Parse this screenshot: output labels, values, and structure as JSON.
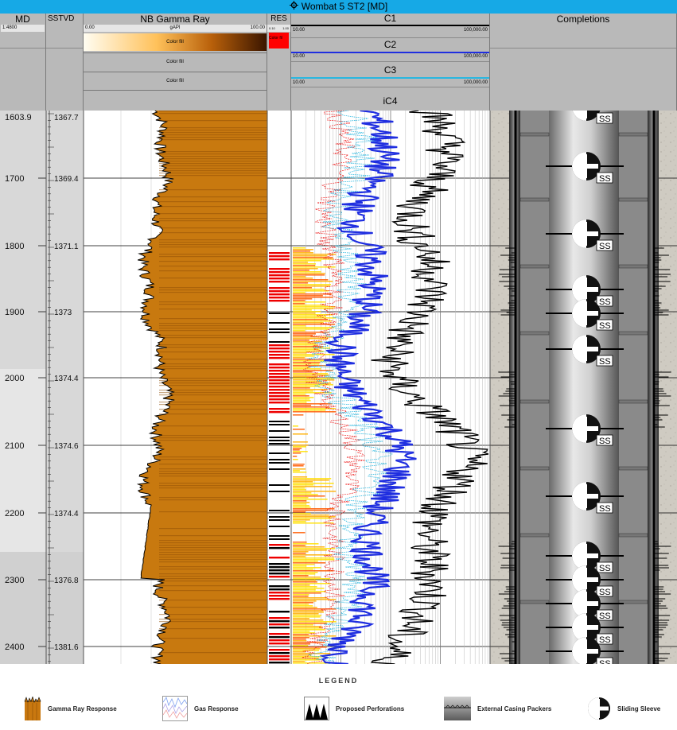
{
  "window": {
    "title": "Wombat 5 ST2 [MD]",
    "icon": "gear-icon"
  },
  "tracks": {
    "md": {
      "name": "MD",
      "scale": "1:4800"
    },
    "sstvd": {
      "name": "SSTVD"
    },
    "gamma": {
      "name": "NB Gamma Ray",
      "scale_min": "0.00",
      "unit": "gAPI",
      "scale_max": "100.00",
      "fill_labels": [
        "Color fill",
        "Color fill",
        "Color fill"
      ]
    },
    "res": {
      "name": "RES",
      "scale_min": "0.10",
      "scale_max": "1.00",
      "fill_label": "Color fil"
    },
    "curves": [
      {
        "name": "C1",
        "min": "10.00",
        "max": "100,000.00",
        "color": "#000000"
      },
      {
        "name": "C2",
        "min": "10.00",
        "max": "100,000.00",
        "color": "#1f2ee0"
      },
      {
        "name": "C3",
        "min": "10.00",
        "max": "100,000.00",
        "color": "#29b7e0"
      },
      {
        "name": "iC4"
      }
    ],
    "completions": {
      "name": "Completions"
    }
  },
  "depths": {
    "md": [
      "1603.9",
      "1700",
      "1800",
      "1900",
      "2000",
      "2100",
      "2200",
      "2300",
      "2400"
    ],
    "sstvd": [
      "1367.7",
      "1369.4",
      "1371.1",
      "1373",
      "1374.4",
      "1374.6",
      "1374.4",
      "1376.8",
      "1381.6"
    ]
  },
  "completion_marks": {
    "sleeve_label": "SS",
    "sleeves": 14
  },
  "legend": {
    "title": "LEGEND",
    "items": [
      {
        "label": "Gamma Ray Response",
        "icon": "gamma-ray-icon"
      },
      {
        "label": "Gas Response",
        "icon": "gas-response-icon"
      },
      {
        "label": "Proposed Perforations",
        "icon": "perforations-icon"
      },
      {
        "label": "External Casing Packers",
        "icon": "casing-packer-icon"
      },
      {
        "label": "Sliding Sleeve",
        "icon": "sliding-sleeve-icon"
      }
    ]
  }
}
